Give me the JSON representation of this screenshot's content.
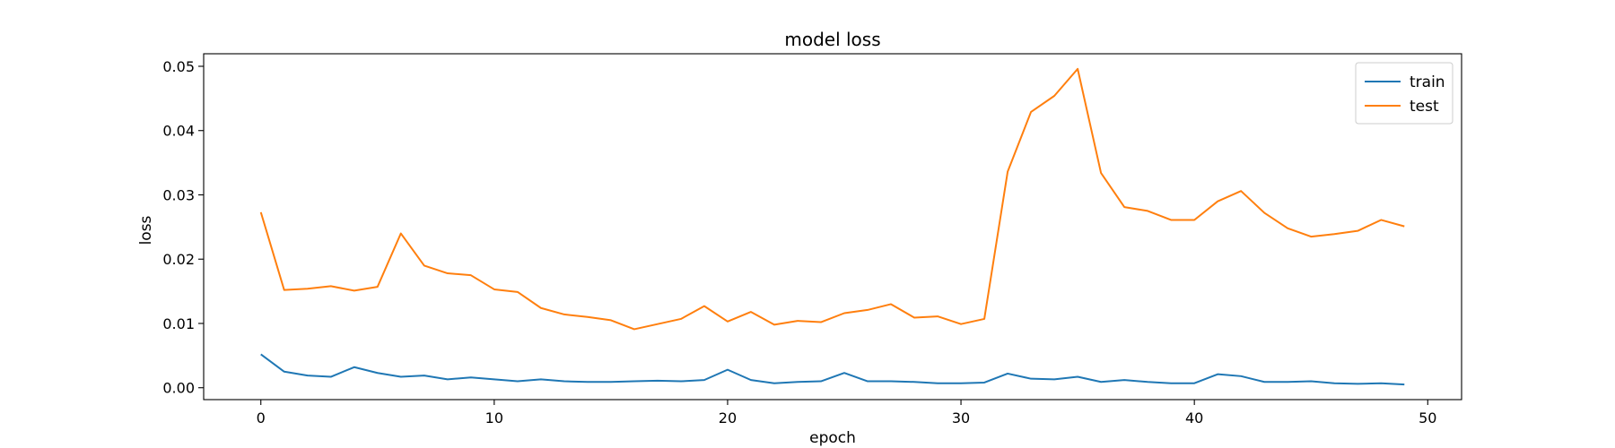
{
  "chart_data": {
    "type": "line",
    "title": "model loss",
    "xlabel": "epoch",
    "ylabel": "loss",
    "xlim": [
      -2.45,
      51.45
    ],
    "ylim": [
      -0.00185,
      0.05195
    ],
    "xticks": [
      0,
      10,
      20,
      30,
      40,
      50
    ],
    "yticks": [
      0.0,
      0.01,
      0.02,
      0.03,
      0.04,
      0.05
    ],
    "ytick_labels": [
      "0.00",
      "0.01",
      "0.02",
      "0.03",
      "0.04",
      "0.05"
    ],
    "grid": false,
    "legend_position": "top-right",
    "x": [
      0,
      1,
      2,
      3,
      4,
      5,
      6,
      7,
      8,
      9,
      10,
      11,
      12,
      13,
      14,
      15,
      16,
      17,
      18,
      19,
      20,
      21,
      22,
      23,
      24,
      25,
      26,
      27,
      28,
      29,
      30,
      31,
      32,
      33,
      34,
      35,
      36,
      37,
      38,
      39,
      40,
      41,
      42,
      43,
      44,
      45,
      46,
      47,
      48,
      49
    ],
    "series": [
      {
        "name": "train",
        "color": "#1f77b4",
        "values": [
          0.0052,
          0.0025,
          0.0019,
          0.0017,
          0.0032,
          0.0023,
          0.0017,
          0.0019,
          0.0013,
          0.0016,
          0.0013,
          0.001,
          0.0013,
          0.001,
          0.0009,
          0.0009,
          0.001,
          0.0011,
          0.001,
          0.0012,
          0.0028,
          0.0012,
          0.0007,
          0.0009,
          0.001,
          0.0023,
          0.001,
          0.001,
          0.0009,
          0.0007,
          0.0007,
          0.0008,
          0.0022,
          0.0014,
          0.0013,
          0.0017,
          0.0009,
          0.0012,
          0.0009,
          0.0007,
          0.0007,
          0.0021,
          0.0018,
          0.0009,
          0.0009,
          0.001,
          0.0007,
          0.0006,
          0.0007,
          0.0005
        ]
      },
      {
        "name": "test",
        "color": "#ff7f0e",
        "values": [
          0.0273,
          0.0152,
          0.0154,
          0.0158,
          0.0151,
          0.0157,
          0.024,
          0.019,
          0.0178,
          0.0175,
          0.0153,
          0.0149,
          0.0124,
          0.0114,
          0.011,
          0.0105,
          0.0091,
          0.0099,
          0.0107,
          0.0127,
          0.0103,
          0.0118,
          0.0098,
          0.0104,
          0.0102,
          0.0116,
          0.0121,
          0.013,
          0.0109,
          0.0111,
          0.0099,
          0.0107,
          0.0336,
          0.0429,
          0.0454,
          0.0496,
          0.0334,
          0.0281,
          0.0275,
          0.0261,
          0.0261,
          0.029,
          0.0306,
          0.0272,
          0.0248,
          0.0235,
          0.0239,
          0.0244,
          0.0261,
          0.0251
        ]
      }
    ]
  }
}
